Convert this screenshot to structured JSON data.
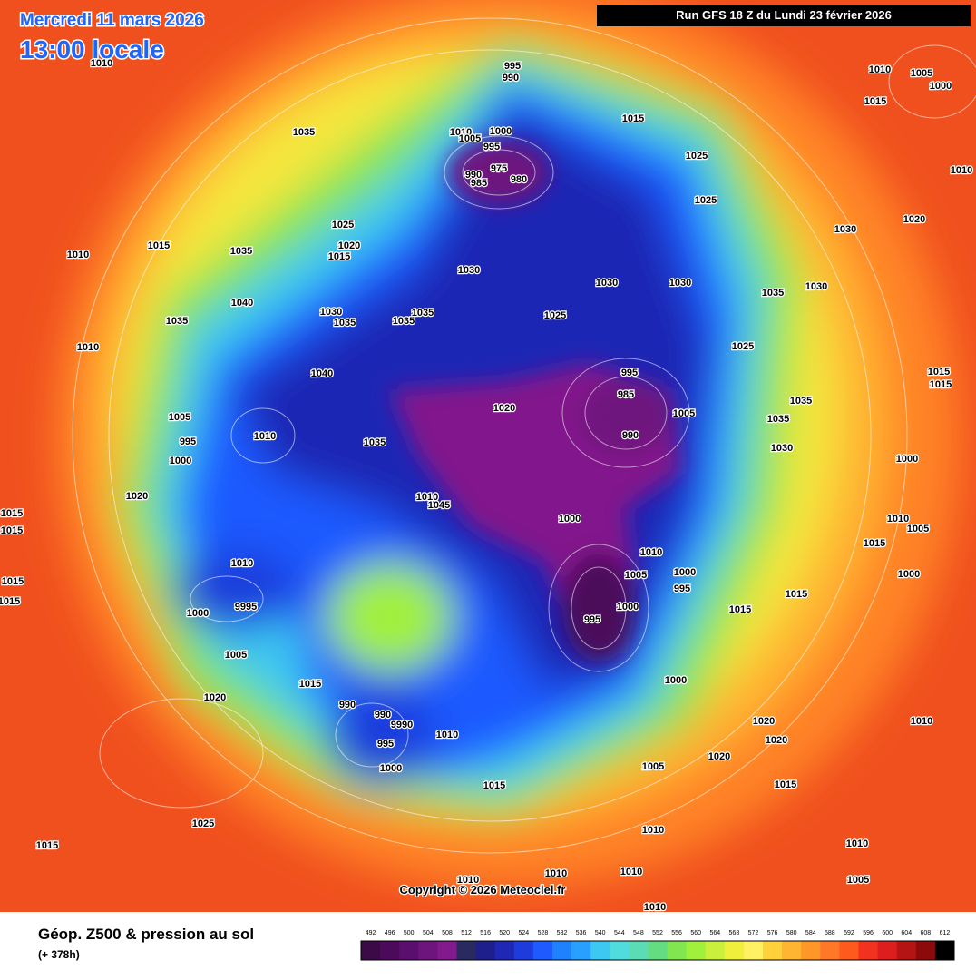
{
  "header": {
    "date": "Mercredi 11 mars 2026",
    "time": "13:00 locale",
    "run": "Run GFS 18 Z du Lundi 23 février 2026"
  },
  "copyright": "Copyright © 2026 Meteociel.fr",
  "footer": {
    "title": "Géop. Z500 & pression au sol",
    "lead": "(+ 378h)"
  },
  "isobar_labels": [
    1010,
    995,
    990,
    1015,
    1035,
    1010,
    1000,
    1005,
    995,
    975,
    990,
    985,
    980,
    1025,
    1025,
    1010,
    1005,
    1000,
    1015,
    1010,
    1030,
    1020,
    1025,
    1020,
    1015,
    1035,
    1015,
    1010,
    1030,
    1030,
    1030,
    1035,
    1030,
    1040,
    1035,
    1030,
    1035,
    1035,
    1035,
    1025,
    1010,
    1025,
    1040,
    995,
    985,
    1005,
    1035,
    1035,
    1020,
    990,
    1030,
    1015,
    1015,
    1005,
    995,
    1000,
    1010,
    1035,
    1000,
    1020,
    1010,
    1045,
    1015,
    1015,
    1000,
    1010,
    1005,
    1015,
    1010,
    1010,
    1005,
    1000,
    995,
    1000,
    1015,
    1015,
    1015,
    1015,
    1000,
    995,
    1000,
    9995,
    1005,
    1015,
    1000,
    1020,
    990,
    990,
    9990,
    1010,
    995,
    1020,
    1010,
    1020,
    1020,
    1000,
    1005,
    1015,
    1015,
    1025,
    1015,
    1010,
    1010,
    1010,
    1010,
    1005,
    1010,
    1010
  ],
  "colorbar": {
    "ticks": [
      492,
      496,
      500,
      504,
      508,
      512,
      516,
      520,
      524,
      528,
      532,
      536,
      540,
      544,
      548,
      552,
      556,
      560,
      564,
      568,
      572,
      576,
      580,
      584,
      588,
      592,
      596,
      600,
      604,
      608,
      612
    ],
    "colors": [
      "#3c0a46",
      "#4b0a5a",
      "#5a0f6e",
      "#6e147d",
      "#82198c",
      "#2a2a5e",
      "#1e1e8c",
      "#1e28b4",
      "#1e3cdc",
      "#1e5aff",
      "#1e82ff",
      "#28a0ff",
      "#3cc8f0",
      "#50dcdc",
      "#5adcb4",
      "#64dc82",
      "#82e650",
      "#a0f03c",
      "#c8f03c",
      "#f0f03c",
      "#fff064",
      "#ffd23c",
      "#ffb432",
      "#ff9628",
      "#ff7828",
      "#ff5a1e",
      "#f0321e",
      "#dc1e1e",
      "#b41414",
      "#8c0a0a",
      "#000000"
    ]
  }
}
